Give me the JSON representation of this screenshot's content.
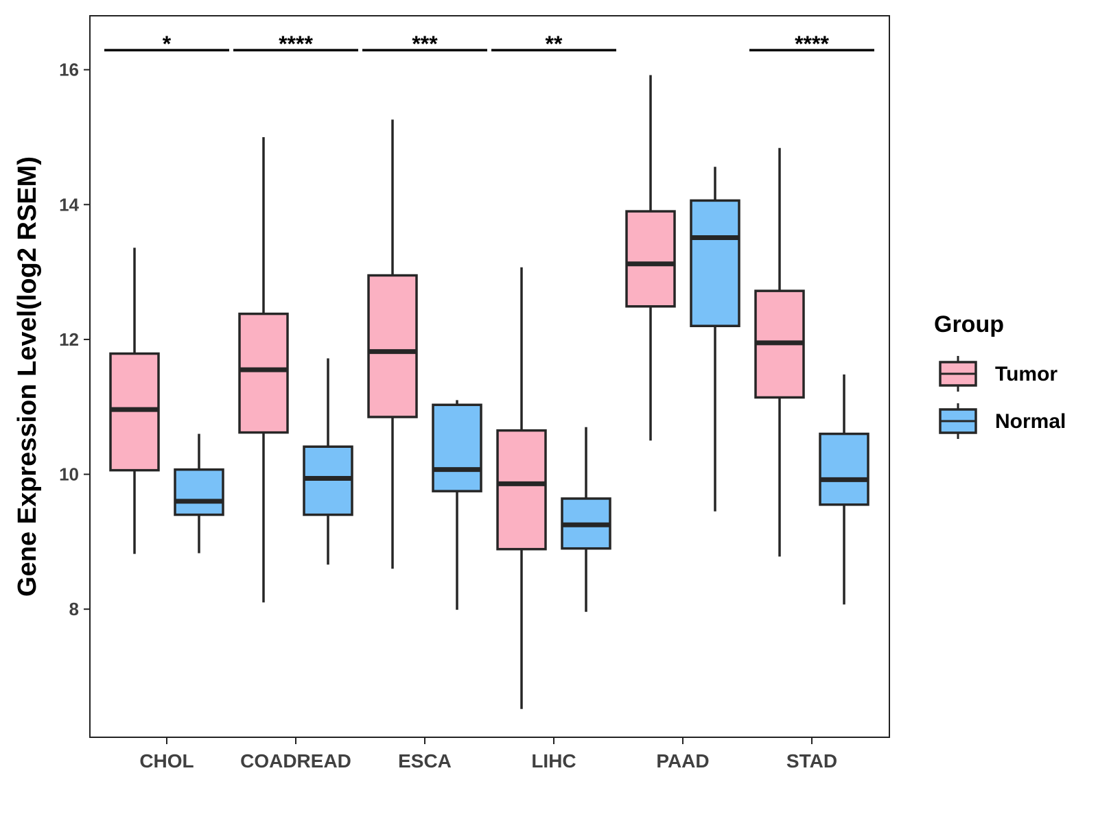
{
  "chart_data": {
    "type": "boxplot",
    "ylabel": "Gene Expression Level(log2 RSEM)",
    "xlabel": "",
    "ylim": [
      6.1,
      16.8
    ],
    "yticks": [
      8,
      10,
      12,
      14,
      16
    ],
    "categories": [
      "CHOL",
      "COADREAD",
      "ESCA",
      "LIHC",
      "PAAD",
      "STAD"
    ],
    "legend": {
      "title": "Group",
      "position": "right",
      "entries": [
        "Tumor",
        "Normal"
      ]
    },
    "series": [
      {
        "name": "Tumor",
        "color": "#FBB1C2",
        "boxes": [
          {
            "min": 8.82,
            "q1": 10.06,
            "median": 10.96,
            "q3": 11.79,
            "max": 13.36
          },
          {
            "min": 8.1,
            "q1": 10.62,
            "median": 11.55,
            "q3": 12.38,
            "max": 15.0
          },
          {
            "min": 8.6,
            "q1": 10.85,
            "median": 11.82,
            "q3": 12.95,
            "max": 15.26
          },
          {
            "min": 6.52,
            "q1": 8.89,
            "median": 9.86,
            "q3": 10.65,
            "max": 13.07
          },
          {
            "min": 10.5,
            "q1": 12.49,
            "median": 13.12,
            "q3": 13.9,
            "max": 15.92
          },
          {
            "min": 8.78,
            "q1": 11.14,
            "median": 11.95,
            "q3": 12.72,
            "max": 14.84
          }
        ]
      },
      {
        "name": "Normal",
        "color": "#79C1F8",
        "boxes": [
          {
            "min": 8.83,
            "q1": 9.4,
            "median": 9.6,
            "q3": 10.07,
            "max": 10.6
          },
          {
            "min": 8.66,
            "q1": 9.4,
            "median": 9.94,
            "q3": 10.41,
            "max": 11.72
          },
          {
            "min": 7.99,
            "q1": 9.75,
            "median": 10.07,
            "q3": 11.03,
            "max": 11.1
          },
          {
            "min": 7.96,
            "q1": 8.9,
            "median": 9.25,
            "q3": 9.64,
            "max": 10.7
          },
          {
            "min": 9.45,
            "q1": 12.2,
            "median": 13.51,
            "q3": 14.06,
            "max": 14.56
          },
          {
            "min": 8.07,
            "q1": 9.55,
            "median": 9.92,
            "q3": 10.6,
            "max": 11.48
          }
        ]
      }
    ],
    "significance": [
      {
        "category": "CHOL",
        "label": "*"
      },
      {
        "category": "COADREAD",
        "label": "****"
      },
      {
        "category": "ESCA",
        "label": "***"
      },
      {
        "category": "LIHC",
        "label": "**"
      },
      {
        "category": "PAAD",
        "label": ""
      },
      {
        "category": "STAD",
        "label": "****"
      }
    ],
    "significance_y": 16.29
  }
}
